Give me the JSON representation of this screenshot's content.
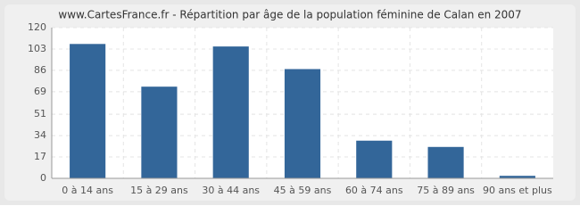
{
  "chart_data": {
    "type": "bar",
    "title": "www.CartesFrance.fr - Répartition par âge de la population féminine de Calan en 2007",
    "categories": [
      "0 à 14 ans",
      "15 à 29 ans",
      "30 à 44 ans",
      "45 à 59 ans",
      "60 à 74 ans",
      "75 à 89 ans",
      "90 ans et plus"
    ],
    "values": [
      107,
      73,
      105,
      87,
      30,
      25,
      2
    ],
    "color": "#336699",
    "ylim": [
      0,
      120
    ],
    "yticks": [
      0,
      17,
      34,
      51,
      69,
      86,
      103,
      120
    ],
    "grid": true
  }
}
